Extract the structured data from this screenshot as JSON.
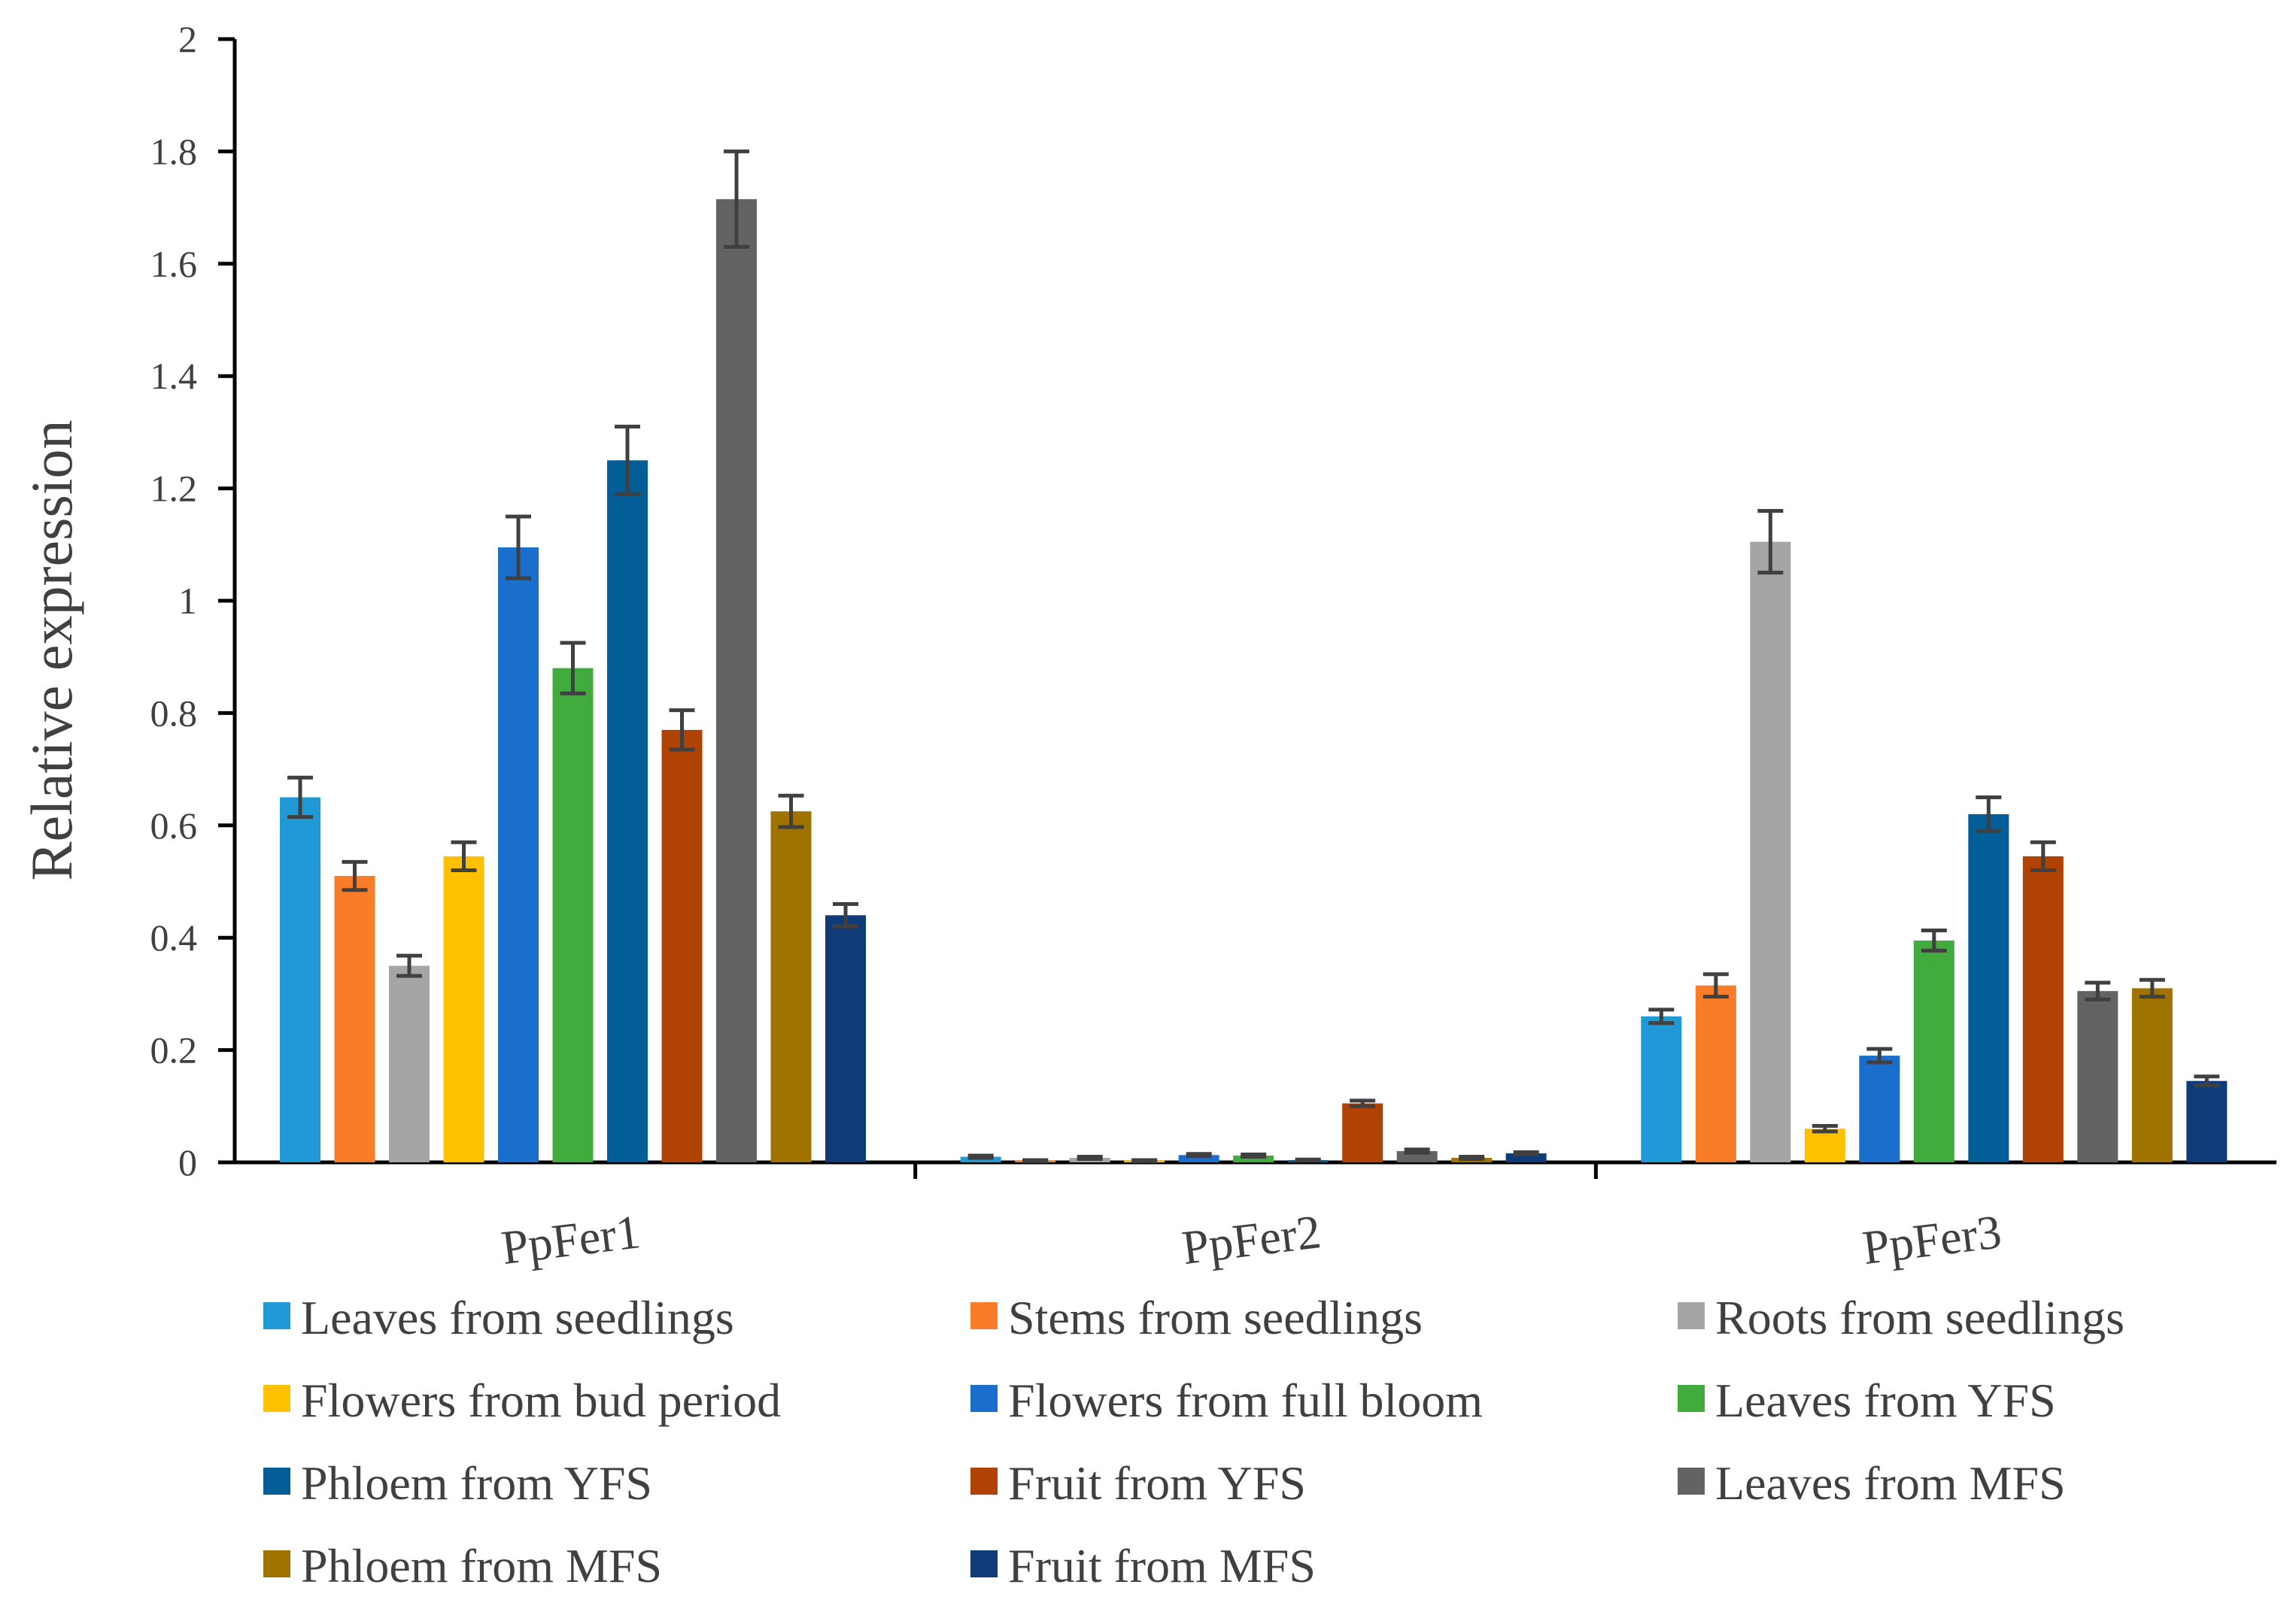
{
  "chart_data": {
    "type": "bar",
    "title": "",
    "xlabel": "",
    "ylabel": "Relative expression",
    "ylim": [
      0,
      2
    ],
    "yticks": [
      "0",
      "0.2",
      "0.4",
      "0.6",
      "0.8",
      "1",
      "1.2",
      "1.4",
      "1.6",
      "1.8",
      "2"
    ],
    "grid": false,
    "legend_position": "bottom",
    "categories": [
      "PpFer1",
      "PpFer2",
      "PpFer3"
    ],
    "series": [
      {
        "name": "Leaves from seedlings",
        "color": "#1f9ad6",
        "values": [
          0.65,
          0.01,
          0.26
        ],
        "errors": [
          0.035,
          0.002,
          0.012
        ]
      },
      {
        "name": "Stems from seedlings",
        "color": "#f97d29",
        "values": [
          0.51,
          0.003,
          0.315
        ],
        "errors": [
          0.025,
          0.001,
          0.02
        ]
      },
      {
        "name": "Roots from seedlings",
        "color": "#a5a5a5",
        "values": [
          0.35,
          0.008,
          1.105
        ],
        "errors": [
          0.018,
          0.002,
          0.055
        ]
      },
      {
        "name": "Flowers from bud period",
        "color": "#ffc000",
        "values": [
          0.545,
          0.003,
          0.06
        ],
        "errors": [
          0.025,
          0.001,
          0.005
        ]
      },
      {
        "name": "Flowers from full bloom",
        "color": "#1a6fcc",
        "values": [
          1.095,
          0.013,
          0.19
        ],
        "errors": [
          0.055,
          0.002,
          0.012
        ]
      },
      {
        "name": "Leaves from YFS",
        "color": "#41ab3d",
        "values": [
          0.88,
          0.012,
          0.395
        ],
        "errors": [
          0.045,
          0.002,
          0.018
        ]
      },
      {
        "name": "Phloem from YFS",
        "color": "#035d96",
        "values": [
          1.25,
          0.004,
          0.62
        ],
        "errors": [
          0.06,
          0.001,
          0.03
        ]
      },
      {
        "name": "Fruit from YFS",
        "color": "#b04203",
        "values": [
          0.77,
          0.105,
          0.545
        ],
        "errors": [
          0.035,
          0.005,
          0.025
        ]
      },
      {
        "name": "Leaves from MFS",
        "color": "#636363",
        "values": [
          1.715,
          0.02,
          0.305
        ],
        "errors": [
          0.085,
          0.003,
          0.015
        ]
      },
      {
        "name": "Phloem from MFS",
        "color": "#a07200",
        "values": [
          0.625,
          0.008,
          0.31
        ],
        "errors": [
          0.028,
          0.002,
          0.015
        ]
      },
      {
        "name": "Fruit from MFS",
        "color": "#0f3c78",
        "values": [
          0.44,
          0.016,
          0.145
        ],
        "errors": [
          0.02,
          0.002,
          0.008
        ]
      }
    ]
  }
}
